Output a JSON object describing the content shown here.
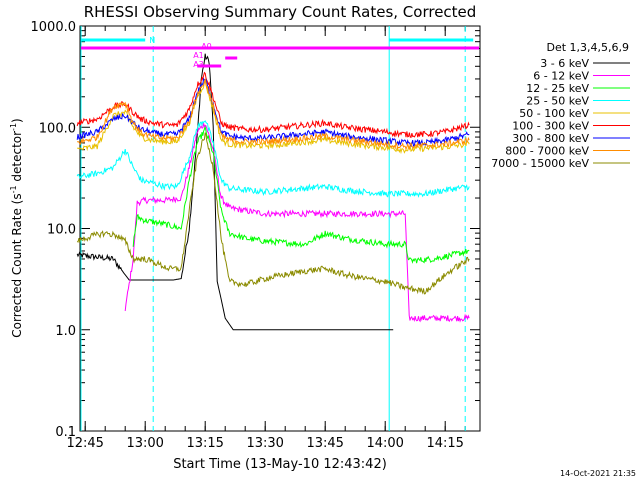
{
  "chart_data": {
    "type": "line",
    "title": "RHESSI Observing Summary Count Rates, Corrected",
    "xlabel": "Start Time (13-May-10 12:43:42)",
    "ylabel": "Corrected Count Rate (s",
    "ylabel_sup1": "-1",
    "ylabel_mid": " detector",
    "ylabel_sup2": "-1",
    "ylabel_end": ")",
    "yscale": "log",
    "ylim": [
      0.1,
      1000
    ],
    "xlim_minutes": [
      "12:43",
      "14:22"
    ],
    "yticks": [
      {
        "value": 1000,
        "label": "1000.0"
      },
      {
        "value": 100,
        "label": "100.0"
      },
      {
        "value": 10,
        "label": "10.0"
      },
      {
        "value": 1,
        "label": "1.0"
      },
      {
        "value": 0.1,
        "label": "0.1"
      }
    ],
    "xticks": [
      {
        "t": "12:45",
        "label": "12:45"
      },
      {
        "t": "13:00",
        "label": "13:00"
      },
      {
        "t": "13:15",
        "label": "13:15"
      },
      {
        "t": "13:30",
        "label": "13:30"
      },
      {
        "t": "13:45",
        "label": "13:45"
      },
      {
        "t": "14:00",
        "label": "14:00"
      },
      {
        "t": "14:15",
        "label": "14:15"
      }
    ],
    "legend_title": "Det 1,3,4,5,6,9",
    "legend_placement": "right",
    "series": [
      {
        "name": "3 - 6 keV",
        "color": "#000000",
        "points": [
          [
            "12:43",
            5.5
          ],
          [
            "12:52",
            5
          ],
          [
            "12:56",
            3.1
          ],
          [
            "12:58",
            3.1
          ],
          [
            "13:01",
            3.1
          ],
          [
            "13:05",
            3.1
          ],
          [
            "13:07",
            3.1
          ],
          [
            "13:09",
            3.2
          ],
          [
            "13:11",
            10
          ],
          [
            "13:13",
            80
          ],
          [
            "13:14",
            300
          ],
          [
            "13:15",
            500
          ],
          [
            "13:16",
            450
          ],
          [
            "13:17",
            100
          ],
          [
            "13:18",
            3
          ],
          [
            "13:19",
            2
          ],
          [
            "13:20",
            1.3
          ],
          [
            "13:22",
            1
          ],
          [
            "13:28",
            1
          ],
          [
            "13:40",
            1
          ],
          [
            "13:50",
            1
          ],
          [
            "14:00",
            1
          ],
          [
            "14:02",
            1
          ]
        ]
      },
      {
        "name": "6 - 12 keV",
        "color": "#ff00ff",
        "points": [
          [
            "12:55",
            1.6
          ],
          [
            "12:57",
            5
          ],
          [
            "12:58",
            18
          ],
          [
            "13:00",
            19
          ],
          [
            "13:05",
            19
          ],
          [
            "13:09",
            20
          ],
          [
            "13:11",
            40
          ],
          [
            "13:13",
            90
          ],
          [
            "13:15",
            110
          ],
          [
            "13:17",
            60
          ],
          [
            "13:19",
            20
          ],
          [
            "13:21",
            16
          ],
          [
            "13:25",
            15
          ],
          [
            "13:30",
            14
          ],
          [
            "13:40",
            14
          ],
          [
            "13:50",
            14
          ],
          [
            "14:00",
            14
          ],
          [
            "14:05",
            14
          ],
          [
            "14:06",
            1.3
          ],
          [
            "14:10",
            1.3
          ],
          [
            "14:15",
            1.3
          ],
          [
            "14:21",
            1.3
          ]
        ]
      },
      {
        "name": "12 - 25 keV",
        "color": "#00ff00",
        "points": [
          [
            "12:57",
            7
          ],
          [
            "12:58",
            13
          ],
          [
            "13:00",
            12
          ],
          [
            "13:05",
            11
          ],
          [
            "13:09",
            10
          ],
          [
            "13:11",
            30
          ],
          [
            "13:13",
            70
          ],
          [
            "13:15",
            95
          ],
          [
            "13:17",
            55
          ],
          [
            "13:19",
            15
          ],
          [
            "13:21",
            9
          ],
          [
            "13:25",
            8
          ],
          [
            "13:30",
            7.5
          ],
          [
            "13:40",
            7
          ],
          [
            "13:45",
            9
          ],
          [
            "13:50",
            8
          ],
          [
            "14:00",
            7
          ],
          [
            "14:05",
            7
          ],
          [
            "14:06",
            4.8
          ],
          [
            "14:12",
            5
          ],
          [
            "14:17",
            5.5
          ],
          [
            "14:21",
            6
          ]
        ]
      },
      {
        "name": "25 - 50 keV",
        "color": "#00ffff",
        "points": [
          [
            "12:43",
            32
          ],
          [
            "12:48",
            35
          ],
          [
            "12:52",
            40
          ],
          [
            "12:55",
            60
          ],
          [
            "12:57",
            40
          ],
          [
            "12:59",
            30
          ],
          [
            "13:02",
            28
          ],
          [
            "13:05",
            26
          ],
          [
            "13:08",
            26
          ],
          [
            "13:11",
            50
          ],
          [
            "13:13",
            100
          ],
          [
            "13:15",
            120
          ],
          [
            "13:17",
            70
          ],
          [
            "13:19",
            30
          ],
          [
            "13:21",
            25
          ],
          [
            "13:25",
            24
          ],
          [
            "13:30",
            23
          ],
          [
            "13:35",
            24
          ],
          [
            "13:40",
            25
          ],
          [
            "13:45",
            26
          ],
          [
            "13:50",
            24
          ],
          [
            "13:55",
            23
          ],
          [
            "14:00",
            22
          ],
          [
            "14:05",
            22
          ],
          [
            "14:10",
            22
          ],
          [
            "14:15",
            24
          ],
          [
            "14:21",
            26
          ]
        ]
      },
      {
        "name": "50 - 100 keV",
        "color": "#e8c000",
        "points": [
          [
            "12:43",
            60
          ],
          [
            "12:48",
            65
          ],
          [
            "12:52",
            130
          ],
          [
            "12:55",
            140
          ],
          [
            "12:57",
            100
          ],
          [
            "12:59",
            80
          ],
          [
            "13:02",
            74
          ],
          [
            "13:05",
            72
          ],
          [
            "13:08",
            72
          ],
          [
            "13:11",
            110
          ],
          [
            "13:13",
            200
          ],
          [
            "13:15",
            280
          ],
          [
            "13:17",
            150
          ],
          [
            "13:19",
            75
          ],
          [
            "13:21",
            68
          ],
          [
            "13:25",
            66
          ],
          [
            "13:30",
            66
          ],
          [
            "13:35",
            68
          ],
          [
            "13:40",
            72
          ],
          [
            "13:45",
            75
          ],
          [
            "13:50",
            70
          ],
          [
            "13:55",
            66
          ],
          [
            "14:00",
            63
          ],
          [
            "14:05",
            60
          ],
          [
            "14:10",
            62
          ],
          [
            "14:15",
            64
          ],
          [
            "14:21",
            68
          ]
        ]
      },
      {
        "name": "100 - 300 keV",
        "color": "#ff0000",
        "points": [
          [
            "12:43",
            110
          ],
          [
            "12:48",
            120
          ],
          [
            "12:52",
            160
          ],
          [
            "12:55",
            170
          ],
          [
            "12:57",
            140
          ],
          [
            "12:59",
            120
          ],
          [
            "13:02",
            110
          ],
          [
            "13:05",
            105
          ],
          [
            "13:08",
            105
          ],
          [
            "13:11",
            150
          ],
          [
            "13:13",
            260
          ],
          [
            "13:15",
            340
          ],
          [
            "13:17",
            200
          ],
          [
            "13:19",
            110
          ],
          [
            "13:21",
            100
          ],
          [
            "13:25",
            95
          ],
          [
            "13:30",
            95
          ],
          [
            "13:35",
            100
          ],
          [
            "13:40",
            105
          ],
          [
            "13:45",
            110
          ],
          [
            "13:50",
            100
          ],
          [
            "13:55",
            95
          ],
          [
            "14:00",
            90
          ],
          [
            "14:05",
            85
          ],
          [
            "14:10",
            85
          ],
          [
            "14:15",
            90
          ],
          [
            "14:21",
            105
          ]
        ]
      },
      {
        "name": "300 - 800 keV",
        "color": "#0000ff",
        "points": [
          [
            "12:43",
            80
          ],
          [
            "12:48",
            90
          ],
          [
            "12:52",
            120
          ],
          [
            "12:55",
            130
          ],
          [
            "12:57",
            110
          ],
          [
            "12:59",
            95
          ],
          [
            "13:02",
            88
          ],
          [
            "13:05",
            85
          ],
          [
            "13:08",
            85
          ],
          [
            "13:11",
            120
          ],
          [
            "13:13",
            220
          ],
          [
            "13:15",
            300
          ],
          [
            "13:17",
            170
          ],
          [
            "13:19",
            90
          ],
          [
            "13:21",
            82
          ],
          [
            "13:25",
            78
          ],
          [
            "13:30",
            78
          ],
          [
            "13:35",
            82
          ],
          [
            "13:40",
            86
          ],
          [
            "13:45",
            90
          ],
          [
            "13:50",
            82
          ],
          [
            "13:55",
            78
          ],
          [
            "14:00",
            74
          ],
          [
            "14:05",
            70
          ],
          [
            "14:10",
            70
          ],
          [
            "14:15",
            74
          ],
          [
            "14:21",
            85
          ]
        ]
      },
      {
        "name": "800 - 7000 keV",
        "color": "#ff8c00",
        "points": [
          [
            "12:43",
            70
          ],
          [
            "12:48",
            80
          ],
          [
            "12:52",
            160
          ],
          [
            "12:55",
            175
          ],
          [
            "12:57",
            110
          ],
          [
            "12:59",
            88
          ],
          [
            "13:02",
            80
          ],
          [
            "13:05",
            78
          ],
          [
            "13:08",
            78
          ],
          [
            "13:11",
            115
          ],
          [
            "13:13",
            210
          ],
          [
            "13:15",
            290
          ],
          [
            "13:17",
            160
          ],
          [
            "13:19",
            82
          ],
          [
            "13:21",
            75
          ],
          [
            "13:25",
            72
          ],
          [
            "13:30",
            72
          ],
          [
            "13:35",
            75
          ],
          [
            "13:40",
            78
          ],
          [
            "13:45",
            82
          ],
          [
            "13:50",
            76
          ],
          [
            "13:55",
            72
          ],
          [
            "14:00",
            68
          ],
          [
            "14:05",
            65
          ],
          [
            "14:10",
            66
          ],
          [
            "14:15",
            68
          ],
          [
            "14:21",
            75
          ]
        ]
      },
      {
        "name": "7000 - 15000 keV",
        "color": "#8b8b00",
        "points": [
          [
            "12:43",
            7.5
          ],
          [
            "12:47",
            8.5
          ],
          [
            "12:50",
            9
          ],
          [
            "12:53",
            8.5
          ],
          [
            "12:55",
            7.5
          ],
          [
            "12:57",
            5
          ],
          [
            "13:00",
            5
          ],
          [
            "13:03",
            4.5
          ],
          [
            "13:06",
            4
          ],
          [
            "13:09",
            4
          ],
          [
            "13:11",
            15
          ],
          [
            "13:13",
            50
          ],
          [
            "13:15",
            85
          ],
          [
            "13:17",
            40
          ],
          [
            "13:19",
            8
          ],
          [
            "13:21",
            3
          ],
          [
            "13:25",
            2.8
          ],
          [
            "13:30",
            3.2
          ],
          [
            "13:35",
            3.5
          ],
          [
            "13:40",
            3.8
          ],
          [
            "13:45",
            4
          ],
          [
            "13:50",
            3.5
          ],
          [
            "13:55",
            3.2
          ],
          [
            "14:00",
            3
          ],
          [
            "14:05",
            2.6
          ],
          [
            "14:10",
            2.4
          ],
          [
            "14:13",
            3
          ],
          [
            "14:17",
            4
          ],
          [
            "14:21",
            5
          ]
        ]
      }
    ],
    "markers": {
      "cyan_bars": [
        [
          "12:43",
          "13:00"
        ],
        [
          "14:01",
          "14:22"
        ]
      ],
      "cyan_bar_label": "N",
      "magenta_bar": [
        "12:43",
        "14:22"
      ],
      "magenta_segments": [
        [
          "13:13",
          "13:19"
        ],
        [
          "13:20",
          "13:23"
        ]
      ],
      "attenuator_labels": [
        "A1",
        "A3",
        "A0"
      ],
      "cyan_solid_lines": [
        "12:43",
        "14:01"
      ],
      "cyan_dashed_lines": [
        "13:02",
        "14:20"
      ]
    }
  },
  "footer": {
    "date": "14-Oct-2021 21:35"
  }
}
